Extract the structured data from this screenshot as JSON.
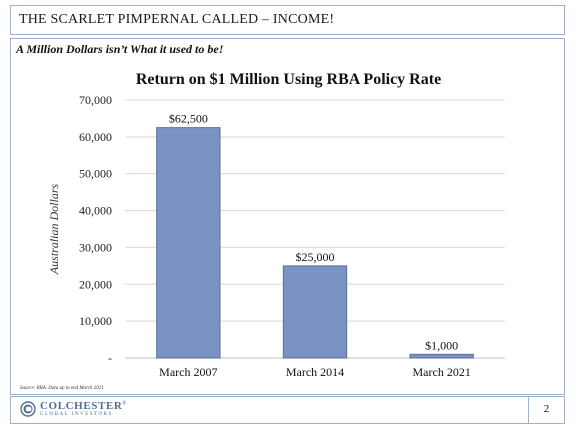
{
  "slide": {
    "header_title": "THE SCARLET PIMPERNAL CALLED – INCOME!",
    "subtitle": "A Million Dollars isn’t What it used to be!",
    "source": "Source: RBA. Data up to end March 2021",
    "page_number": "2",
    "logo": {
      "name": "COLCHESTER",
      "trademark": "®",
      "sub": "GLOBAL INVESTORS"
    }
  },
  "colors": {
    "bar": "#7b93c4",
    "bar_stroke": "#5a6f9c",
    "frame": "#9fb0c8",
    "logo": "#4f6f9a"
  },
  "chart_data": {
    "type": "bar",
    "title": "Return on $1 Million Using RBA Policy Rate",
    "xlabel": "",
    "ylabel": "Australian Dollars",
    "categories": [
      "March 2007",
      "March 2014",
      "March 2021"
    ],
    "values": [
      62500,
      25000,
      1000
    ],
    "data_labels": [
      "$62,500",
      "$25,000",
      "$1,000"
    ],
    "ylim": [
      0,
      70000
    ],
    "yticks": [
      0,
      10000,
      20000,
      30000,
      40000,
      50000,
      60000,
      70000
    ],
    "ytick_labels": [
      "-",
      "10,000",
      "20,000",
      "30,000",
      "40,000",
      "50,000",
      "60,000",
      "70,000"
    ],
    "grid": true,
    "legend": "none"
  }
}
